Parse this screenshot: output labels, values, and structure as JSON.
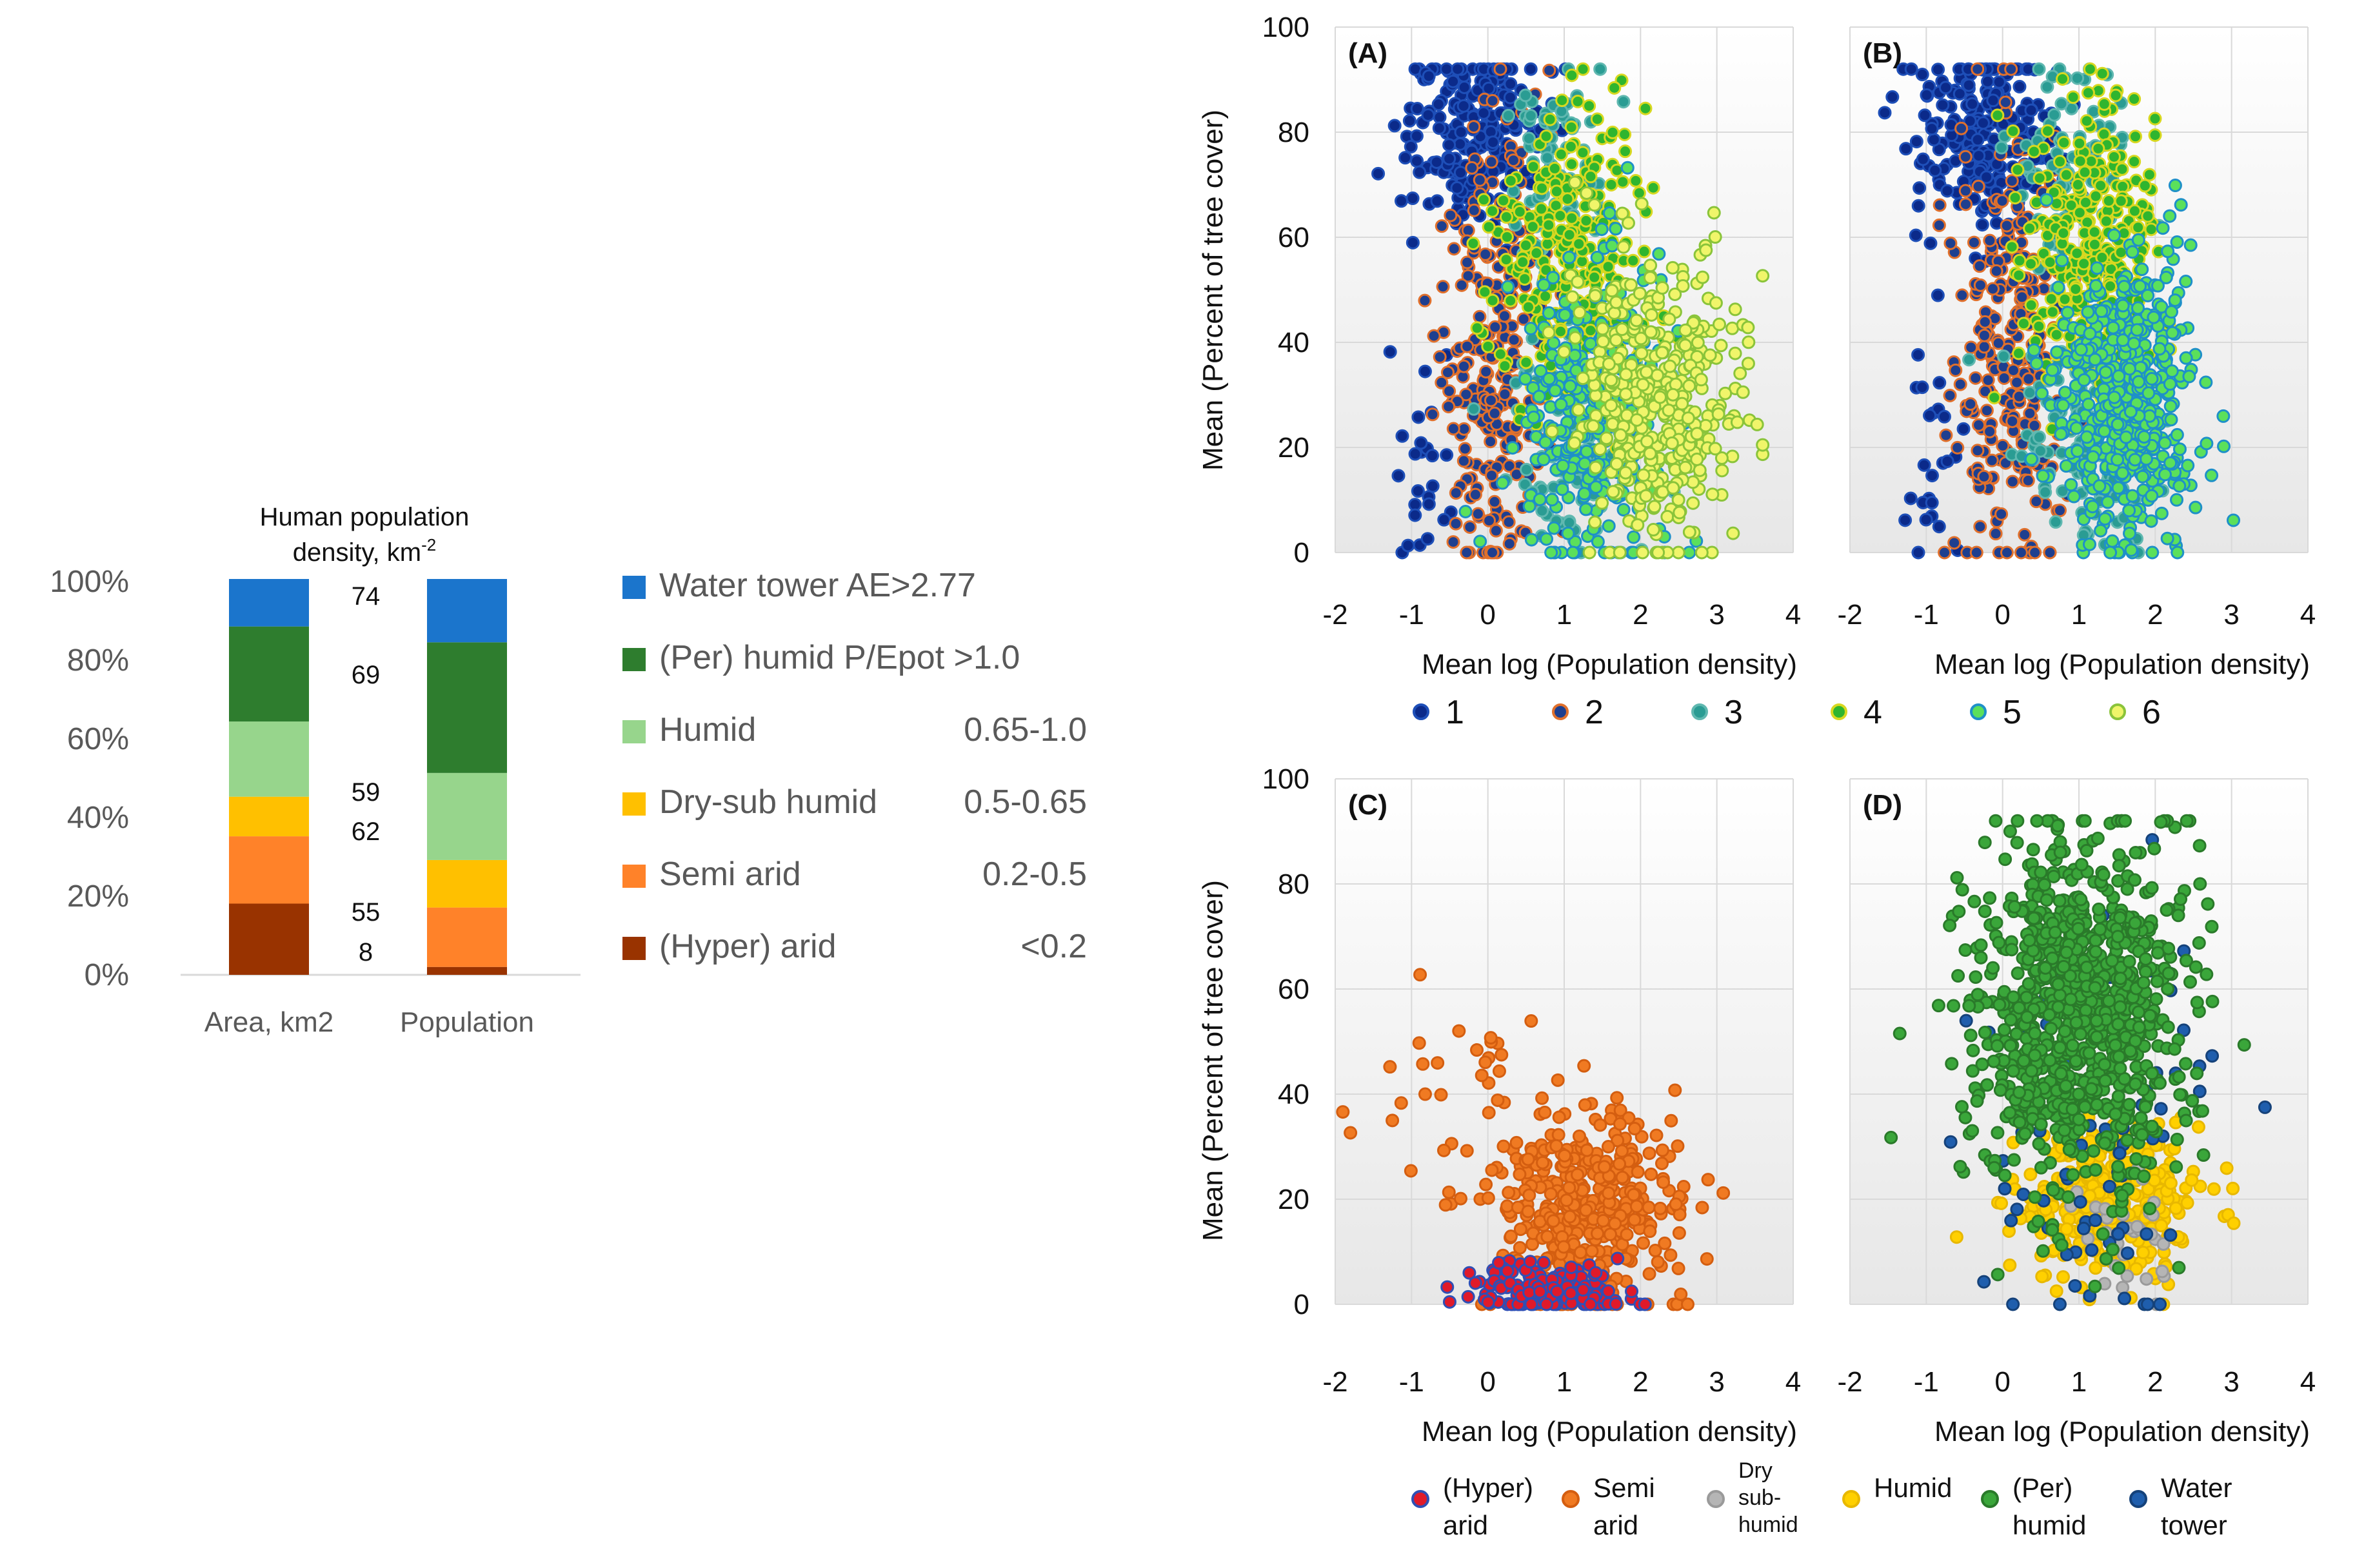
{
  "stacked": {
    "title_line1": "Human population",
    "title_line2": "density, km",
    "title_sup": "-2",
    "y_ticks": [
      "100%",
      "80%",
      "60%",
      "40%",
      "20%",
      "0%"
    ],
    "categories": [
      "Area, km2",
      "Population"
    ],
    "classes": [
      {
        "name": "(Hyper) arid",
        "color": "#993300",
        "area": 18,
        "population": 2,
        "density": "8",
        "legend_left": "(Hyper) arid",
        "legend_right": "<0.2"
      },
      {
        "name": "Semi arid",
        "color": "#FF8229",
        "area": 17,
        "population": 15,
        "density": "55",
        "legend_left": "Semi arid",
        "legend_right": "0.2-0.5"
      },
      {
        "name": "Dry-sub humid",
        "color": "#FFC000",
        "area": 10,
        "population": 12,
        "density": "62",
        "legend_left": "Dry-sub humid",
        "legend_right": "0.5-0.65"
      },
      {
        "name": "Humid",
        "color": "#97D58C",
        "area": 19,
        "population": 22,
        "density": "59",
        "legend_left": "Humid",
        "legend_right": "0.65-1.0"
      },
      {
        "name": "(Per) humid",
        "color": "#2E7D2E",
        "area": 24,
        "population": 33,
        "density": "69",
        "legend_left": "(Per) humid P/Epot >1.0",
        "legend_right": ""
      },
      {
        "name": "Water tower",
        "color": "#1B75CC",
        "area": 12,
        "population": 16,
        "density": "74",
        "legend_left": "Water tower AE>2.77",
        "legend_right": ""
      }
    ]
  },
  "scatter": {
    "x_ticks": [
      "-2",
      "-1",
      "0",
      "1",
      "2",
      "3",
      "4"
    ],
    "y_ticks": [
      "100",
      "80",
      "60",
      "40",
      "20",
      "0"
    ],
    "xlabel": "Mean log (Population density)",
    "ylabel": "Mean (Percent of tree cover)",
    "panel_labels": [
      "(A)",
      "(B)",
      "(C)",
      "(D)"
    ],
    "legend_top": [
      {
        "label": "1",
        "fill": "#0B2A8A",
        "stroke": "#1E4FB8"
      },
      {
        "label": "2",
        "fill": "#1E3F8F",
        "stroke": "#E0702C"
      },
      {
        "label": "3",
        "fill": "#2A9C93",
        "stroke": "#60B8B0"
      },
      {
        "label": "4",
        "fill": "#2FB52F",
        "stroke": "#D8D820"
      },
      {
        "label": "5",
        "fill": "#5BE05B",
        "stroke": "#1E90C8"
      },
      {
        "label": "6",
        "fill": "#F0F56A",
        "stroke": "#8AC43A"
      }
    ],
    "legend_bottom": [
      {
        "line1": "(Hyper)",
        "line2": "arid",
        "line3": "",
        "fill": "#E01A2A",
        "stroke": "#2F4FB5"
      },
      {
        "line1": "Semi",
        "line2": "arid",
        "line3": "",
        "fill": "#F07A22",
        "stroke": "#D45E10"
      },
      {
        "line1": "Dry",
        "line2": "sub-",
        "line3": "humid",
        "fill": "#B5B5B5",
        "stroke": "#9A9A9A"
      },
      {
        "line1": "Humid",
        "line2": "",
        "line3": "",
        "fill": "#FFD000",
        "stroke": "#E8B800"
      },
      {
        "line1": "(Per)",
        "line2": "humid",
        "line3": "",
        "fill": "#3AA63A",
        "stroke": "#2A7A2A"
      },
      {
        "line1": "Water",
        "line2": "tower",
        "line3": "",
        "fill": "#1F5EAD",
        "stroke": "#15427A"
      }
    ]
  },
  "chart_data": [
    {
      "type": "bar",
      "subtype": "100% stacked",
      "title": "Human population density, km-2",
      "categories": [
        "Area, km2",
        "Population"
      ],
      "series": [
        {
          "name": "(Hyper) arid",
          "values": [
            18,
            2
          ],
          "density_label": "8"
        },
        {
          "name": "Semi arid",
          "values": [
            17,
            15
          ],
          "density_label": "55"
        },
        {
          "name": "Dry-sub humid",
          "values": [
            10,
            12
          ],
          "density_label": "62"
        },
        {
          "name": "Humid",
          "values": [
            19,
            22
          ],
          "density_label": "59"
        },
        {
          "name": "(Per) humid",
          "values": [
            24,
            33
          ],
          "density_label": "69"
        },
        {
          "name": "Water tower",
          "values": [
            12,
            16
          ],
          "density_label": "74"
        }
      ],
      "ylim": [
        0,
        100
      ]
    },
    {
      "type": "scatter",
      "panel": "(A)",
      "xlabel": "Mean log (Population density)",
      "ylabel": "Mean (Percent of tree cover)",
      "xlim": [
        -2,
        4
      ],
      "ylim": [
        0,
        100
      ],
      "groups": [
        "1",
        "2",
        "3",
        "4",
        "5",
        "6"
      ]
    },
    {
      "type": "scatter",
      "panel": "(B)",
      "xlabel": "Mean log (Population density)",
      "ylabel": "",
      "xlim": [
        -2,
        4
      ],
      "ylim": [
        0,
        100
      ],
      "groups": [
        "1",
        "2",
        "3",
        "4",
        "5",
        "6"
      ]
    },
    {
      "type": "scatter",
      "panel": "(C)",
      "xlabel": "Mean log (Population density)",
      "ylabel": "Mean (Percent of tree cover)",
      "xlim": [
        -2,
        4
      ],
      "ylim": [
        0,
        100
      ],
      "groups": [
        "(Hyper) arid",
        "Semi arid"
      ]
    },
    {
      "type": "scatter",
      "panel": "(D)",
      "xlabel": "Mean log (Population density)",
      "ylabel": "",
      "xlim": [
        -2,
        4
      ],
      "ylim": [
        0,
        100
      ],
      "groups": [
        "Dry sub-humid",
        "Humid",
        "(Per) humid",
        "Water tower"
      ]
    }
  ]
}
